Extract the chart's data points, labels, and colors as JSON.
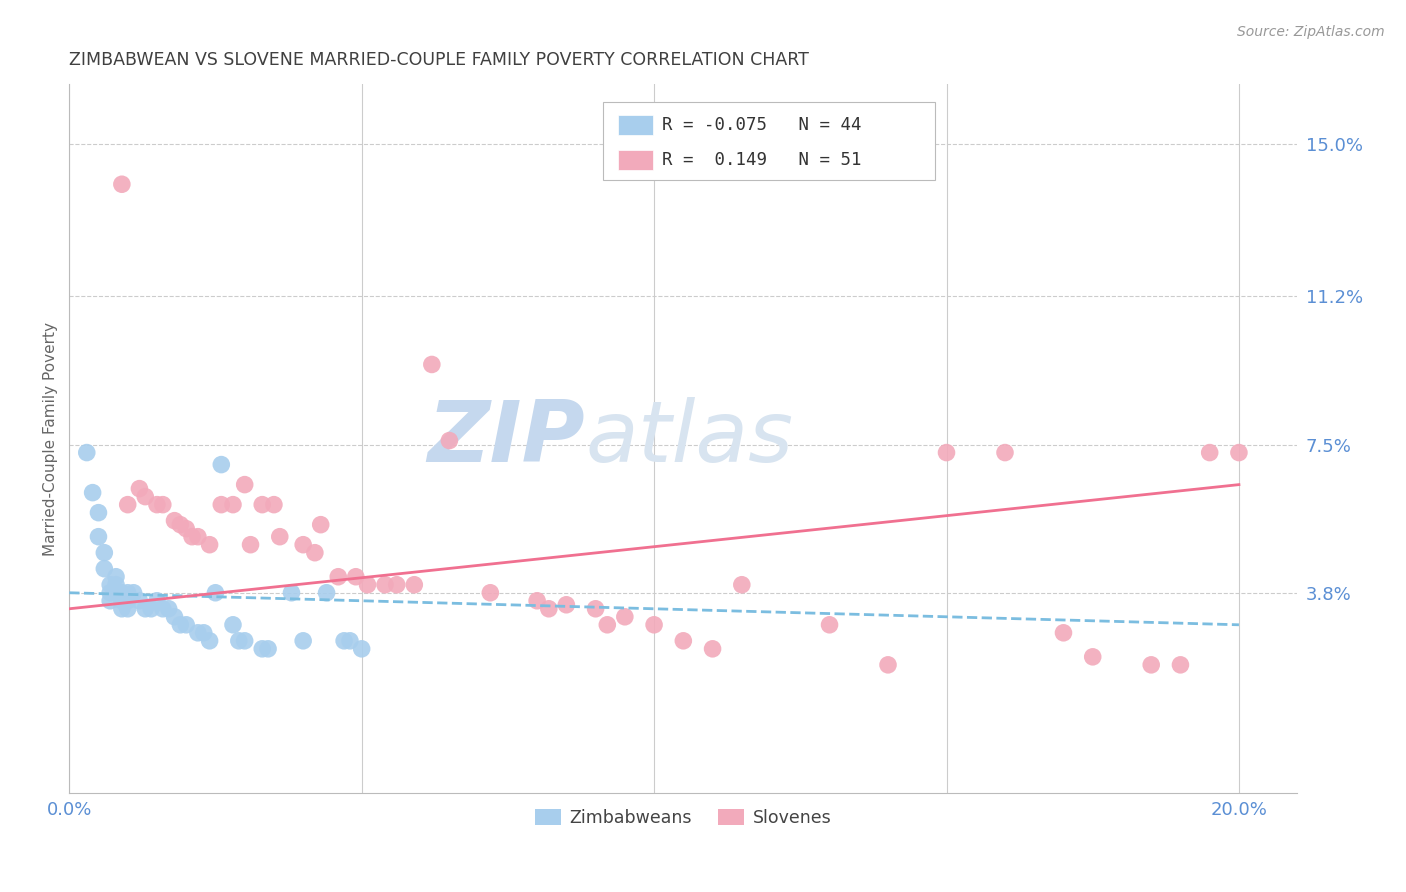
{
  "title": "ZIMBABWEAN VS SLOVENE MARRIED-COUPLE FAMILY POVERTY CORRELATION CHART",
  "source": "Source: ZipAtlas.com",
  "ylabel": "Married-Couple Family Poverty",
  "xlim": [
    0.0,
    0.21
  ],
  "ylim": [
    -0.012,
    0.165
  ],
  "ytick_labels": [
    "15.0%",
    "11.2%",
    "7.5%",
    "3.8%"
  ],
  "ytick_values": [
    0.15,
    0.112,
    0.075,
    0.038
  ],
  "blue_color": "#A8CEED",
  "pink_color": "#F2AABB",
  "trendline_blue_color": "#7BBDE0",
  "trendline_pink_color": "#F07090",
  "grid_color": "#CCCCCC",
  "axis_label_color": "#5B8FD4",
  "title_color": "#404040",
  "watermark_zip_color": "#C8D8EE",
  "watermark_atlas_color": "#D0D8E8",
  "blue_scatter": [
    [
      0.003,
      0.073
    ],
    [
      0.004,
      0.063
    ],
    [
      0.005,
      0.058
    ],
    [
      0.005,
      0.052
    ],
    [
      0.006,
      0.048
    ],
    [
      0.006,
      0.044
    ],
    [
      0.007,
      0.04
    ],
    [
      0.007,
      0.038
    ],
    [
      0.007,
      0.036
    ],
    [
      0.008,
      0.042
    ],
    [
      0.008,
      0.04
    ],
    [
      0.008,
      0.038
    ],
    [
      0.009,
      0.038
    ],
    [
      0.009,
      0.036
    ],
    [
      0.009,
      0.034
    ],
    [
      0.01,
      0.038
    ],
    [
      0.01,
      0.036
    ],
    [
      0.01,
      0.034
    ],
    [
      0.011,
      0.038
    ],
    [
      0.012,
      0.036
    ],
    [
      0.013,
      0.034
    ],
    [
      0.014,
      0.034
    ],
    [
      0.015,
      0.036
    ],
    [
      0.016,
      0.034
    ],
    [
      0.017,
      0.034
    ],
    [
      0.018,
      0.032
    ],
    [
      0.019,
      0.03
    ],
    [
      0.02,
      0.03
    ],
    [
      0.022,
      0.028
    ],
    [
      0.023,
      0.028
    ],
    [
      0.024,
      0.026
    ],
    [
      0.025,
      0.038
    ],
    [
      0.026,
      0.07
    ],
    [
      0.028,
      0.03
    ],
    [
      0.029,
      0.026
    ],
    [
      0.03,
      0.026
    ],
    [
      0.033,
      0.024
    ],
    [
      0.034,
      0.024
    ],
    [
      0.038,
      0.038
    ],
    [
      0.04,
      0.026
    ],
    [
      0.044,
      0.038
    ],
    [
      0.047,
      0.026
    ],
    [
      0.048,
      0.026
    ],
    [
      0.05,
      0.024
    ]
  ],
  "pink_scatter": [
    [
      0.009,
      0.14
    ],
    [
      0.01,
      0.06
    ],
    [
      0.012,
      0.064
    ],
    [
      0.013,
      0.062
    ],
    [
      0.015,
      0.06
    ],
    [
      0.016,
      0.06
    ],
    [
      0.018,
      0.056
    ],
    [
      0.019,
      0.055
    ],
    [
      0.02,
      0.054
    ],
    [
      0.021,
      0.052
    ],
    [
      0.022,
      0.052
    ],
    [
      0.024,
      0.05
    ],
    [
      0.026,
      0.06
    ],
    [
      0.028,
      0.06
    ],
    [
      0.03,
      0.065
    ],
    [
      0.031,
      0.05
    ],
    [
      0.033,
      0.06
    ],
    [
      0.035,
      0.06
    ],
    [
      0.036,
      0.052
    ],
    [
      0.04,
      0.05
    ],
    [
      0.042,
      0.048
    ],
    [
      0.043,
      0.055
    ],
    [
      0.046,
      0.042
    ],
    [
      0.049,
      0.042
    ],
    [
      0.051,
      0.04
    ],
    [
      0.054,
      0.04
    ],
    [
      0.056,
      0.04
    ],
    [
      0.059,
      0.04
    ],
    [
      0.062,
      0.095
    ],
    [
      0.065,
      0.076
    ],
    [
      0.072,
      0.038
    ],
    [
      0.08,
      0.036
    ],
    [
      0.085,
      0.035
    ],
    [
      0.09,
      0.034
    ],
    [
      0.095,
      0.032
    ],
    [
      0.1,
      0.03
    ],
    [
      0.11,
      0.024
    ],
    [
      0.115,
      0.04
    ],
    [
      0.13,
      0.03
    ],
    [
      0.14,
      0.02
    ],
    [
      0.15,
      0.073
    ],
    [
      0.16,
      0.073
    ],
    [
      0.17,
      0.028
    ],
    [
      0.175,
      0.022
    ],
    [
      0.185,
      0.02
    ],
    [
      0.19,
      0.02
    ],
    [
      0.195,
      0.073
    ],
    [
      0.2,
      0.073
    ],
    [
      0.082,
      0.034
    ],
    [
      0.092,
      0.03
    ],
    [
      0.105,
      0.026
    ]
  ],
  "blue_trend_x": [
    0.0,
    0.2
  ],
  "blue_trend_y": [
    0.038,
    0.03
  ],
  "pink_trend_x": [
    0.0,
    0.2
  ],
  "pink_trend_y": [
    0.034,
    0.065
  ]
}
